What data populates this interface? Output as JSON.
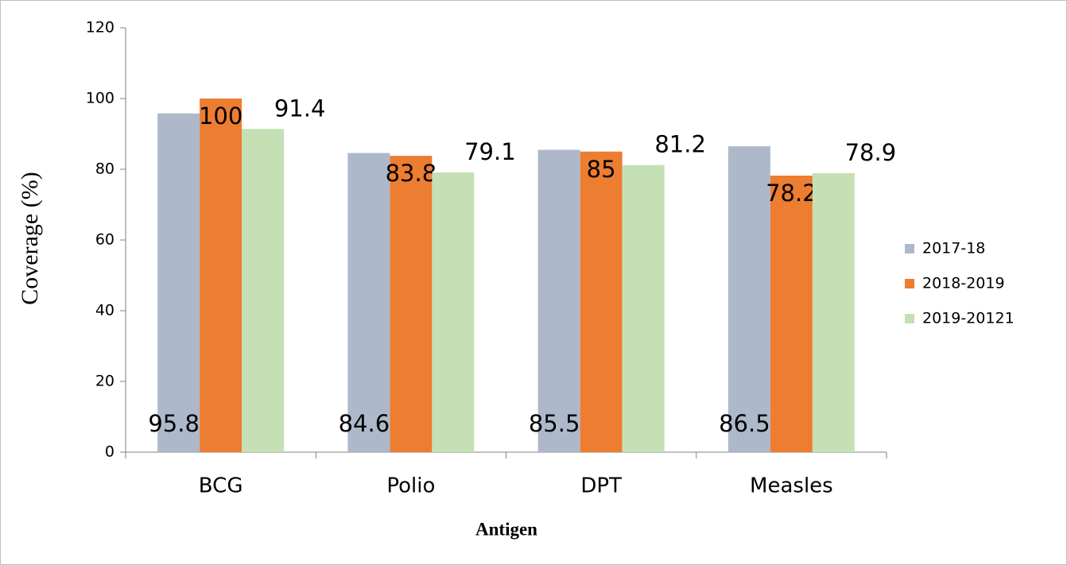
{
  "chart_data": {
    "type": "bar",
    "categories": [
      "BCG",
      "Polio",
      "DPT",
      "Measles"
    ],
    "series": [
      {
        "name": "2017-18",
        "color": "#adb9ca",
        "values": [
          95.8,
          84.6,
          85.5,
          86.5
        ]
      },
      {
        "name": "2018-2019",
        "color": "#ed7d31",
        "values": [
          100,
          83.8,
          85,
          78.2
        ]
      },
      {
        "name": "2019-20121",
        "color": "#c5e0b4",
        "values": [
          91.4,
          79.1,
          81.2,
          78.9
        ]
      }
    ],
    "y_label": "Coverage (%)",
    "x_label": "Antigen",
    "ylim": [
      0,
      120
    ],
    "yticks": [
      0,
      20,
      40,
      60,
      80,
      100,
      120
    ],
    "legend": "right"
  }
}
